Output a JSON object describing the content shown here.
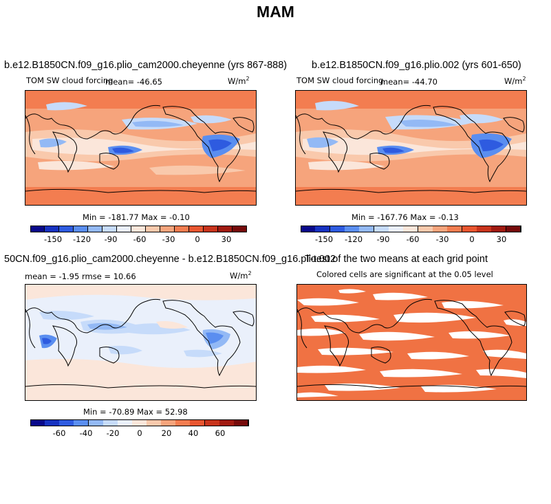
{
  "main_title": "MAM",
  "colors": {
    "scale": [
      "#08088a",
      "#1632c0",
      "#2e5be0",
      "#5a8ef0",
      "#93b9f5",
      "#c6dbfa",
      "#eaf0fb",
      "#fbe6da",
      "#f9c9ac",
      "#f6a47c",
      "#f37d50",
      "#e85630",
      "#c8341c",
      "#a01a10",
      "#760a0a"
    ],
    "sig_fill": "#f07243",
    "coast": "#000000"
  },
  "panels": [
    {
      "title": "b.e12.B1850CN.f09_g16.plio_cam2000.cheyenne (yrs 867-888)",
      "left_label": "TOM SW cloud forcing",
      "center_label": "mean= -46.65",
      "units": "W/m",
      "units_exp": "2",
      "stats": "Min = -181.77  Max =  -0.10",
      "cbar_ticks": [
        "-150",
        "-120",
        "-90",
        "-60",
        "-30",
        "0",
        "30"
      ]
    },
    {
      "title": "b.e12.B1850CN.f09_g16.plio.002 (yrs 601-650)",
      "left_label": "TOM SW cloud forcing",
      "center_label": "mean= -44.70",
      "units": "W/m",
      "units_exp": "2",
      "stats": "Min = -167.76  Max =  -0.13",
      "cbar_ticks": [
        "-150",
        "-120",
        "-90",
        "-60",
        "-30",
        "0",
        "30"
      ]
    },
    {
      "title": "50CN.f09_g16.plio_cam2000.cheyenne - b.e12.B1850CN.f09_g16.plio.002",
      "left_label": "mean =  -1.95     rmse =  10.66",
      "units": "W/m",
      "units_exp": "2",
      "stats": "Min = -70.89  Max =  52.98",
      "cbar_ticks": [
        "-60",
        "-40",
        "-20",
        "0",
        "20",
        "40",
        "60"
      ]
    },
    {
      "title": "T-test of the two means at each grid point",
      "subtitle": "Colored cells are significant at the 0.05 level"
    }
  ],
  "chart_data": [
    {
      "type": "heatmap",
      "title": "b.e12.B1850CN.f09_g16.plio_cam2000.cheyenne (yrs 867-888)",
      "variable": "TOM SW cloud forcing",
      "units": "W/m^2",
      "mean": -46.65,
      "min": -181.77,
      "max": -0.1,
      "colorbar_ticks": [
        -150,
        -120,
        -90,
        -60,
        -30,
        0,
        30
      ],
      "colorbar_range": [
        -165,
        45
      ]
    },
    {
      "type": "heatmap",
      "title": "b.e12.B1850CN.f09_g16.plio.002 (yrs 601-650)",
      "variable": "TOM SW cloud forcing",
      "units": "W/m^2",
      "mean": -44.7,
      "min": -167.76,
      "max": -0.13,
      "colorbar_ticks": [
        -150,
        -120,
        -90,
        -60,
        -30,
        0,
        30
      ],
      "colorbar_range": [
        -165,
        45
      ]
    },
    {
      "type": "heatmap",
      "title": "50CN.f09_g16.plio_cam2000.cheyenne - b.e12.B1850CN.f09_g16.plio.002",
      "units": "W/m^2",
      "mean": -1.95,
      "rmse": 10.66,
      "min": -70.89,
      "max": 52.98,
      "colorbar_ticks": [
        -60,
        -40,
        -20,
        0,
        20,
        40,
        60
      ],
      "colorbar_range": [
        -70,
        70
      ]
    },
    {
      "type": "heatmap",
      "title": "T-test of the two means at each grid point",
      "note": "Colored cells are significant at the 0.05 level",
      "significance_level": 0.05
    }
  ]
}
